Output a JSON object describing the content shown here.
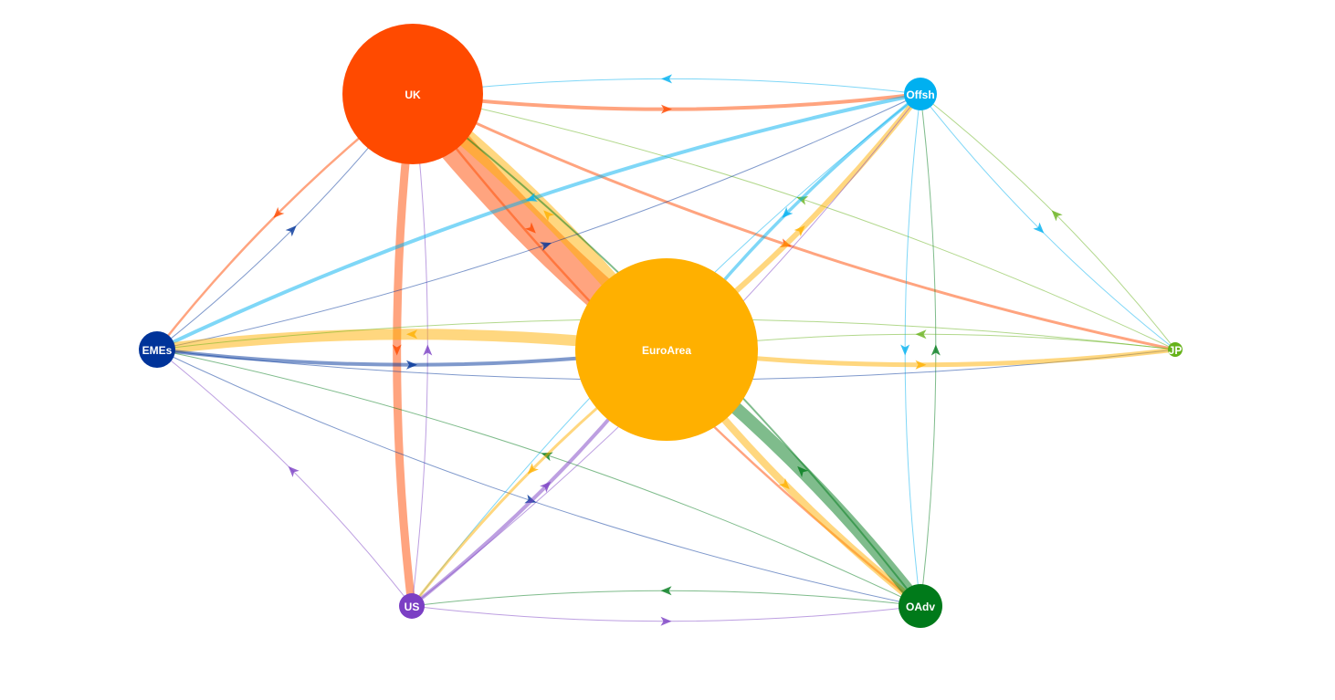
{
  "nodes": [
    {
      "id": "UK",
      "label": "UK",
      "color": "#ff4a00",
      "size": 77
    },
    {
      "id": "Offsh",
      "label": "Offsh",
      "color": "#00b0f0",
      "size": 18
    },
    {
      "id": "EMEs",
      "label": "EMEs",
      "color": "#003399",
      "size": 20
    },
    {
      "id": "EuroArea",
      "label": "EuroArea",
      "color": "#ffb000",
      "size": 100
    },
    {
      "id": "JP",
      "label": "JP",
      "color": "#66b21a",
      "size": 8
    },
    {
      "id": "US",
      "label": "US",
      "color": "#7b3fc4",
      "size": 14
    },
    {
      "id": "OAdv",
      "label": "OAdv",
      "color": "#007a1a",
      "size": 24
    }
  ],
  "edges": [
    {
      "from": "UK",
      "to": "EuroArea",
      "weight": 38
    },
    {
      "from": "EuroArea",
      "to": "UK",
      "weight": 20
    },
    {
      "from": "UK",
      "to": "Offsh",
      "weight": 4
    },
    {
      "from": "Offsh",
      "to": "UK",
      "weight": 1
    },
    {
      "from": "UK",
      "to": "EMEs",
      "weight": 2.5
    },
    {
      "from": "EMEs",
      "to": "UK",
      "weight": 1
    },
    {
      "from": "UK",
      "to": "US",
      "weight": 9
    },
    {
      "from": "US",
      "to": "UK",
      "weight": 1
    },
    {
      "from": "UK",
      "to": "JP",
      "weight": 3
    },
    {
      "from": "JP",
      "to": "UK",
      "weight": 1
    },
    {
      "from": "UK",
      "to": "OAdv",
      "weight": 2.5
    },
    {
      "from": "OAdv",
      "to": "UK",
      "weight": 2
    },
    {
      "from": "Offsh",
      "to": "EMEs",
      "weight": 4
    },
    {
      "from": "EMEs",
      "to": "Offsh",
      "weight": 1
    },
    {
      "from": "Offsh",
      "to": "EuroArea",
      "weight": 3.5
    },
    {
      "from": "EuroArea",
      "to": "Offsh",
      "weight": 6
    },
    {
      "from": "Offsh",
      "to": "JP",
      "weight": 1
    },
    {
      "from": "JP",
      "to": "Offsh",
      "weight": 1
    },
    {
      "from": "Offsh",
      "to": "OAdv",
      "weight": 1
    },
    {
      "from": "OAdv",
      "to": "Offsh",
      "weight": 1
    },
    {
      "from": "Offsh",
      "to": "US",
      "weight": 1
    },
    {
      "from": "US",
      "to": "Offsh",
      "weight": 1
    },
    {
      "from": "EuroArea",
      "to": "EMEs",
      "weight": 12
    },
    {
      "from": "EMEs",
      "to": "EuroArea",
      "weight": 4
    },
    {
      "from": "EMEs",
      "to": "JP",
      "weight": 1
    },
    {
      "from": "JP",
      "to": "EMEs",
      "weight": 1
    },
    {
      "from": "US",
      "to": "EMEs",
      "weight": 1
    },
    {
      "from": "EMEs",
      "to": "OAdv",
      "weight": 1
    },
    {
      "from": "OAdv",
      "to": "EMEs",
      "weight": 1
    },
    {
      "from": "EuroArea",
      "to": "JP",
      "weight": 5
    },
    {
      "from": "JP",
      "to": "EuroArea",
      "weight": 1
    },
    {
      "from": "EuroArea",
      "to": "US",
      "weight": 3
    },
    {
      "from": "US",
      "to": "EuroArea",
      "weight": 4
    },
    {
      "from": "EuroArea",
      "to": "OAdv",
      "weight": 8
    },
    {
      "from": "OAdv",
      "to": "EuroArea",
      "weight": 14
    },
    {
      "from": "US",
      "to": "OAdv",
      "weight": 1
    },
    {
      "from": "OAdv",
      "to": "US",
      "weight": 1
    }
  ]
}
